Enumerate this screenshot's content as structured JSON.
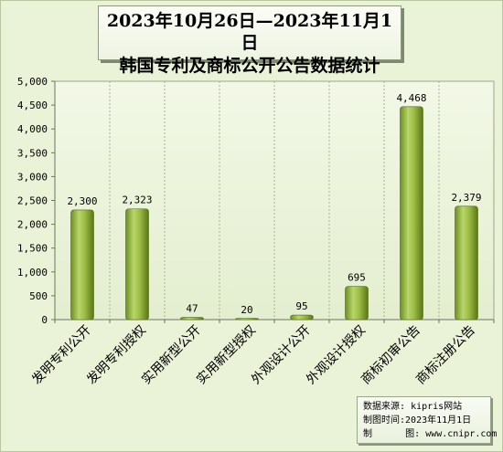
{
  "title": {
    "line1": "2023年10月26日—2023年11月1日",
    "line2": "韩国专利及商标公开公告数据统计"
  },
  "source": {
    "label_source": "数据来源:",
    "value_source": "kipris网站",
    "label_time": "制图时间:",
    "value_time": "2023年11月1日",
    "label_maker": "制      图:",
    "value_maker": "www.cnipr.com"
  },
  "colors": {
    "background": "#eaf3d8",
    "bar_light": "#b7d36a",
    "bar_mid": "#8fb13a",
    "bar_dark": "#5f7d1c"
  },
  "chart_data": {
    "type": "bar",
    "categories": [
      "发明专利公开",
      "发明专利授权",
      "实用新型公开",
      "实用新型授权",
      "外观设计公开",
      "外观设计授权",
      "商标初审公告",
      "商标注册公告"
    ],
    "values": [
      2300,
      2323,
      47,
      20,
      95,
      695,
      4468,
      2379
    ],
    "data_labels": [
      "2,300",
      "2,323",
      "47",
      "20",
      "95",
      "695",
      "4,468",
      "2,379"
    ],
    "ylim": [
      0,
      5000
    ],
    "yticks": [
      0,
      500,
      1000,
      1500,
      2000,
      2500,
      3000,
      3500,
      4000,
      4500,
      5000
    ],
    "ytick_labels": [
      "0",
      "500",
      "1,000",
      "1,500",
      "2,000",
      "2,500",
      "3,000",
      "3,500",
      "4,000",
      "4,500",
      "5,000"
    ],
    "grid": "vertical-dashed",
    "xlabel": "",
    "ylabel": ""
  }
}
